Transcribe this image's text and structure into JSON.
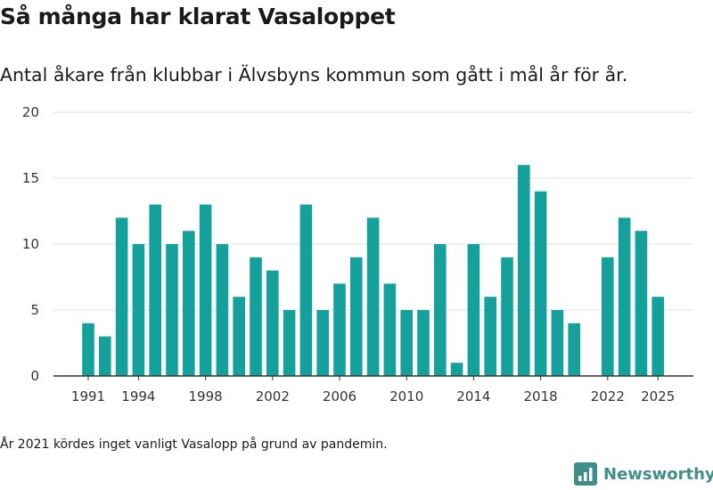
{
  "title": "Så många har klarat Vasaloppet",
  "subtitle": "Antal åkare från klubbar i Älvsbyns kommun som gått i mål år för år.",
  "note": "År 2021 kördes inget vanligt Vasalopp på grund av pandemin.",
  "brand": {
    "name": "Newsworthy",
    "icon": "bar-chart-logo-icon"
  },
  "colors": {
    "bar": "#14a19b",
    "grid": "#e2e2e2",
    "axis": "#333333",
    "brand": "#3f8f88"
  },
  "chart_data": {
    "type": "bar",
    "title": "",
    "xlabel": "",
    "ylabel": "",
    "ylim": [
      0,
      20
    ],
    "y_ticks": [
      0,
      5,
      10,
      15,
      20
    ],
    "x_tick_labels": [
      "1991",
      "1994",
      "1998",
      "2002",
      "2006",
      "2010",
      "2014",
      "2018",
      "2022",
      "2025"
    ],
    "grid": true,
    "categories": [
      1991,
      1992,
      1993,
      1994,
      1995,
      1996,
      1997,
      1998,
      1999,
      2000,
      2001,
      2002,
      2003,
      2004,
      2005,
      2006,
      2007,
      2008,
      2009,
      2010,
      2011,
      2012,
      2013,
      2014,
      2015,
      2016,
      2017,
      2018,
      2019,
      2020,
      2021,
      2022,
      2023,
      2024,
      2025
    ],
    "values": [
      4,
      3,
      12,
      10,
      13,
      10,
      11,
      13,
      10,
      6,
      9,
      8,
      5,
      13,
      5,
      7,
      9,
      12,
      7,
      5,
      5,
      10,
      1,
      10,
      6,
      9,
      16,
      14,
      5,
      4,
      null,
      9,
      12,
      11,
      6
    ]
  }
}
